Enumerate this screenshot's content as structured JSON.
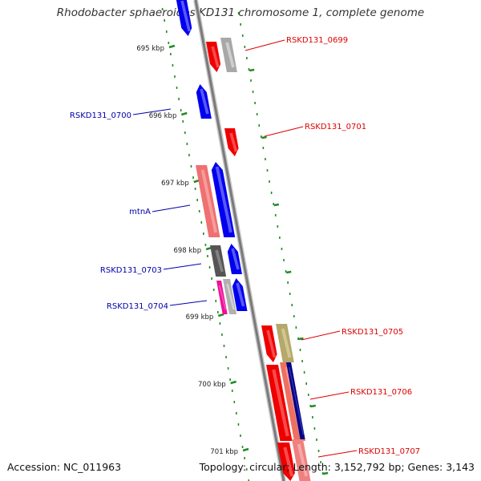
{
  "title": "Rhodobacter sphaeroides KD131 chromosome 1, complete genome",
  "accession": "Accession: NC_011963",
  "topology": "Topology: circular; Length: 3,152,792 bp; Genes: 3,143",
  "colors": {
    "forward_gene": "#0000ff",
    "reverse_gene": "#ff0000",
    "label_forward": "#0000aa",
    "label_reverse": "#dd0000",
    "tick": "#228b22",
    "backbone": "#888888"
  },
  "ticks": [
    {
      "label": "695 kbp"
    },
    {
      "label": "696 kbp"
    },
    {
      "label": "697 kbp"
    },
    {
      "label": "698 kbp"
    },
    {
      "label": "699 kbp"
    },
    {
      "label": "700 kbp"
    },
    {
      "label": "701 kbp"
    }
  ],
  "labels": [
    {
      "text": "RSKD131_0699",
      "strand": "reverse"
    },
    {
      "text": "RSKD131_0700",
      "strand": "forward"
    },
    {
      "text": "RSKD131_0701",
      "strand": "reverse"
    },
    {
      "text": "mtnA",
      "strand": "forward"
    },
    {
      "text": "RSKD131_0703",
      "strand": "forward"
    },
    {
      "text": "RSKD131_0704",
      "strand": "forward"
    },
    {
      "text": "RSKD131_0705",
      "strand": "reverse"
    },
    {
      "text": "RSKD131_0706",
      "strand": "reverse"
    },
    {
      "text": "RSKD131_0707",
      "strand": "reverse"
    }
  ]
}
